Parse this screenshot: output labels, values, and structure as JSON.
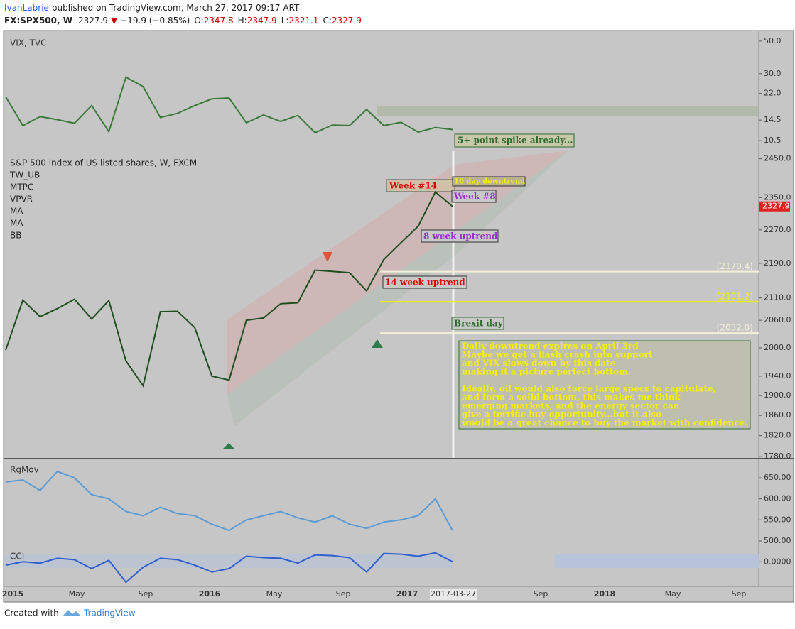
{
  "header": {
    "author": "IvanLabrie",
    "published": "published on TradingView.com, March 27, 2017 09:17 ART",
    "symbol": "FX:SPX500, W",
    "last": "2327.9",
    "change": "−19.9 (−0.85%)",
    "o_label": "O:",
    "o": "2347.8",
    "h_label": "H:",
    "h": "2347.9",
    "l_label": "L:",
    "l": "2321.1",
    "c_label": "C:",
    "c": "2327.9"
  },
  "chart_data": [
    {
      "type": "line",
      "title": "VIX, TVC",
      "color": "#3a7a3a",
      "log_scale": true,
      "ylim": [
        9.0,
        59.0
      ],
      "yticks": [
        {
          "value": 50,
          "label": "50.0"
        },
        {
          "value": 30,
          "label": "30.0"
        },
        {
          "value": 22,
          "label": "22.0"
        },
        14.5,
        10.5
      ],
      "values": [
        20.9,
        13.3,
        15.3,
        14.6,
        13.8,
        18.2,
        12.1,
        28.4,
        24.5,
        15.1,
        16.1,
        18.2,
        20.2,
        20.5,
        13.9,
        15.7,
        14.2,
        15.6,
        11.9,
        13.4,
        13.3,
        17.1,
        13.3,
        14.0,
        12.0,
        12.9,
        12.5
      ],
      "annotations": [
        "5+ point spike already..."
      ]
    },
    {
      "type": "line",
      "title": "S&P 500 index of US listed shares, W, FXCM",
      "color": "#1f4f1f",
      "log_scale": true,
      "indicators": [
        "TW_UB",
        "MTPC",
        "VPVR",
        "MA",
        "MA",
        "BB"
      ],
      "ylim": [
        1777,
        2470
      ],
      "yticks": [
        {
          "value": 2450,
          "label": "2450.0"
        },
        {
          "value": 2350,
          "label": "2350.0"
        },
        {
          "value": 2270,
          "label": "2270.0"
        },
        {
          "value": 2190,
          "label": "2190.0"
        },
        {
          "value": 2110,
          "label": "2110.0"
        },
        {
          "value": 2060,
          "label": "2060.0"
        },
        {
          "value": 2000,
          "label": "2000.0"
        },
        {
          "value": 1940,
          "label": "1940.0"
        },
        {
          "value": 1900,
          "label": "1900.0"
        },
        {
          "value": 1860,
          "label": "1860.0"
        },
        {
          "value": 1820,
          "label": "1820.0"
        },
        {
          "value": 1780,
          "label": "1780.0"
        }
      ],
      "values": [
        1995,
        2105,
        2068,
        2086,
        2107,
        2063,
        2104,
        1972,
        1920,
        2079,
        2080,
        2044,
        1940,
        1932,
        2060,
        2065,
        2097,
        2099,
        2174,
        2171,
        2168,
        2126,
        2199,
        2239,
        2279,
        2364,
        2328
      ],
      "last_price": 2327.9,
      "levels": [
        {
          "value": 2170.4,
          "label": "(2170.4)",
          "color": "#f4efd8"
        },
        {
          "value": 2101.2,
          "label": "(2101.2)",
          "color": "#f2f200"
        },
        {
          "value": 2032.0,
          "label": "(2032.0)",
          "color": "#f4efd8"
        }
      ],
      "annotations": [
        "Week #14",
        "10 day downtrend",
        "Week #8",
        "8 week uptrend",
        "14 week uptrend",
        "Brexit day"
      ],
      "note": [
        "Daily downtrend expires on April 3rd",
        "Maybe we get a flash crash into support",
        "and VIX slows down by this date",
        "making it a picture perfect bottom.",
        "Ideally, oil would also force large specs to capitulate,",
        "and form a solid bottom, this makes me think",
        "emerging markets, and the energy sector can",
        "give a terrific buy opportunity...but it also",
        "would be a great chance to buy the market with confidence."
      ]
    },
    {
      "type": "line",
      "title": "RgMov",
      "color": "#5b9bd5",
      "log_scale": false,
      "ylim": [
        486.5,
        695.5
      ],
      "yticks": [
        {
          "value": 650,
          "label": "650.00"
        },
        {
          "value": 600,
          "label": "600.00"
        },
        {
          "value": 550,
          "label": "550.00"
        },
        {
          "value": 500,
          "label": "500.00"
        }
      ],
      "values": [
        640,
        645,
        620,
        665,
        650,
        610,
        600,
        570,
        560,
        580,
        565,
        560,
        540,
        525,
        550,
        560,
        570,
        555,
        545,
        560,
        540,
        530,
        545,
        550,
        560,
        600,
        525
      ]
    },
    {
      "type": "line",
      "title": "CCI",
      "color": "#2e5fd0",
      "log_scale": false,
      "ylim": [
        -350,
        210
      ],
      "yticks": [
        {
          "value": 0,
          "label": "0.0000"
        }
      ],
      "values": [
        -50,
        0,
        -20,
        50,
        30,
        -100,
        20,
        -300,
        -80,
        50,
        30,
        -50,
        -150,
        -100,
        80,
        60,
        50,
        -20,
        100,
        90,
        60,
        -150,
        120,
        110,
        80,
        130,
        0
      ]
    }
  ],
  "time_axis": [
    "2015",
    "May",
    "Sep",
    "2016",
    "May",
    "Sep",
    "2017",
    "2017-03-27",
    "Sep",
    "2018",
    "May",
    "Sep"
  ],
  "footer": {
    "created": "Created with",
    "brand": "TradingView"
  }
}
